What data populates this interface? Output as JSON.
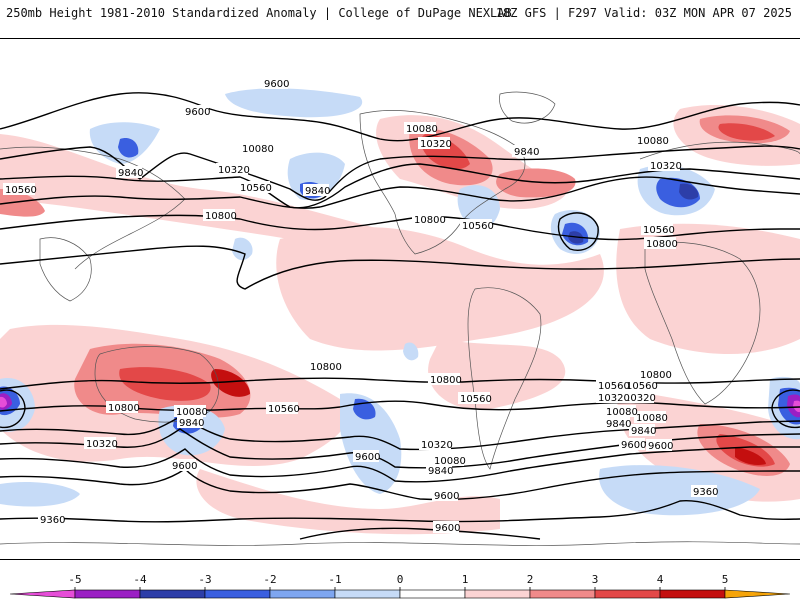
{
  "header": {
    "title_left": "250mb Height 1981-2010 Standardized Anomaly | College of DuPage NEXLAB",
    "title_right": "18Z GFS | F297 Valid: 03Z MON APR 07 2025"
  },
  "map": {
    "contour_labels": [
      "9600",
      "9600",
      "9840",
      "10080",
      "10320",
      "10560",
      "9840",
      "10080",
      "10320",
      "9840",
      "10080",
      "10320",
      "10560",
      "10800",
      "10800",
      "10560",
      "10800",
      "10560",
      "10800",
      "10800",
      "10560",
      "10800",
      "10800",
      "10560",
      "10320",
      "10080",
      "9840",
      "9600",
      "10080",
      "9840",
      "10320",
      "9600",
      "9840",
      "10080",
      "10320",
      "10560",
      "9360",
      "9600",
      "9600",
      "9600",
      "10560",
      "10320",
      "10080",
      "9840",
      "9600",
      "9360"
    ]
  },
  "colorbar": {
    "ticks": [
      "-5",
      "-4",
      "-3",
      "-2",
      "-1",
      "0",
      "1",
      "2",
      "3",
      "4",
      "5"
    ],
    "colors": [
      "#e64dd8",
      "#9b1fc4",
      "#2d3ea8",
      "#3a5fe0",
      "#7ea6f0",
      "#c6dbf7",
      "#ffffff",
      "#fbd3d3",
      "#f08a8a",
      "#e34848",
      "#c40f0f",
      "#f5a40a"
    ]
  }
}
